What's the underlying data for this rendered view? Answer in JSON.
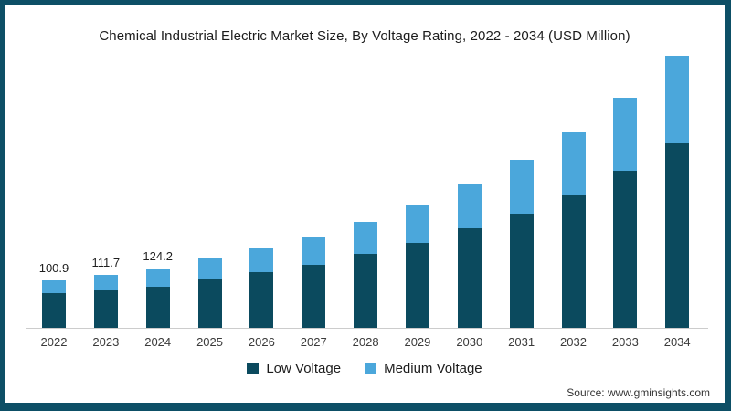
{
  "title": "Chemical Industrial Electric Market Size, By Voltage Rating, 2022 - 2034 (USD Million)",
  "source": "Source: www.gminsights.com",
  "colors": {
    "low_voltage": "#0b4a5e",
    "medium_voltage": "#4ba7db",
    "frame_border": "#0d4f66",
    "axis_line": "#cccccc",
    "text": "#1c1c1c"
  },
  "legend": [
    {
      "label": "Low Voltage",
      "color": "#0b4a5e"
    },
    {
      "label": "Medium Voltage",
      "color": "#4ba7db"
    }
  ],
  "chart_data": {
    "type": "bar",
    "stacked": true,
    "title": "Chemical Industrial Electric Market Size, By Voltage Rating, 2022 - 2034 (USD Million)",
    "unit": "USD Million",
    "categories": [
      "2022",
      "2023",
      "2024",
      "2025",
      "2026",
      "2027",
      "2028",
      "2029",
      "2030",
      "2031",
      "2032",
      "2033",
      "2034"
    ],
    "series": [
      {
        "name": "Low Voltage",
        "color": "#0b4a5e",
        "values": [
          73.2,
          79.8,
          86.6,
          102,
          117,
          132,
          155,
          178,
          209,
          241,
          280,
          330,
          388
        ]
      },
      {
        "name": "Medium Voltage",
        "color": "#4ba7db",
        "values": [
          27.7,
          31.9,
          37.6,
          47,
          53,
          61,
          69,
          81,
          95,
          112,
          133,
          155,
          185
        ]
      }
    ],
    "totals": [
      100.9,
      111.7,
      124.2,
      149,
      170,
      193,
      224,
      259,
      304,
      353,
      413,
      485,
      573
    ],
    "data_labels": {
      "2022": "100.9",
      "2023": "111.7",
      "2024": "124.2"
    },
    "ylim": [
      0,
      600
    ],
    "grid": false,
    "y_axis_visible": false,
    "legend_position": "bottom"
  }
}
